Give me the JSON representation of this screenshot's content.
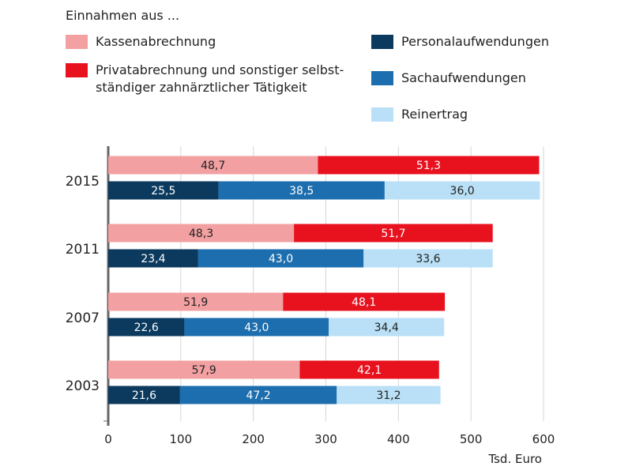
{
  "legend": {
    "title": "Einnahmen aus ...",
    "items": [
      {
        "label": "Kassenabrechnung",
        "color": "#f2a0a1"
      },
      {
        "label": "Privatabrechnung und sonstiger selbst-\nständiger zahnärztlicher Tätigkeit",
        "color": "#e8111e"
      },
      {
        "label": "Personalaufwendungen",
        "color": "#0b3a5e"
      },
      {
        "label": "Sachaufwendungen",
        "color": "#1d6eae"
      },
      {
        "label": "Reinertrag",
        "color": "#b9e0f6"
      }
    ]
  },
  "chart_data": {
    "type": "bar",
    "orientation": "horizontal",
    "stacked": true,
    "categories": [
      "2015",
      "2011",
      "2007",
      "2003"
    ],
    "xlabel": "Tsd. Euro",
    "xlim": [
      0,
      600
    ],
    "xticks": [
      0,
      100,
      200,
      300,
      400,
      500,
      600
    ],
    "grid": true,
    "income": {
      "series": [
        {
          "name": "Kassenabrechnung",
          "color": "#f2a0a1",
          "percent_labels": [
            "48,7",
            "48,3",
            "51,9",
            "57,9"
          ],
          "values": [
            289,
            256,
            241,
            264
          ]
        },
        {
          "name": "Privatabrechnung und sonstiger selbstständiger zahnärztlicher Tätigkeit",
          "color": "#e8111e",
          "percent_labels": [
            "51,3",
            "51,7",
            "48,1",
            "42,1"
          ],
          "values": [
            305,
            274,
            223,
            192
          ]
        }
      ]
    },
    "expenses": {
      "series": [
        {
          "name": "Personalaufwendungen",
          "color": "#0b3a5e",
          "percent_labels": [
            "25,5",
            "23,4",
            "22,6",
            "21,6"
          ],
          "values": [
            152,
            124,
            105,
            99
          ]
        },
        {
          "name": "Sachaufwendungen",
          "color": "#1d6eae",
          "percent_labels": [
            "38,5",
            "43,0",
            "43,0",
            "47,2"
          ],
          "values": [
            229,
            228,
            199,
            216
          ]
        },
        {
          "name": "Reinertrag",
          "color": "#b9e0f6",
          "percent_labels": [
            "36,0",
            "33,6",
            "34,4",
            "31,2"
          ],
          "values": [
            214,
            178,
            159,
            143
          ]
        }
      ]
    }
  }
}
